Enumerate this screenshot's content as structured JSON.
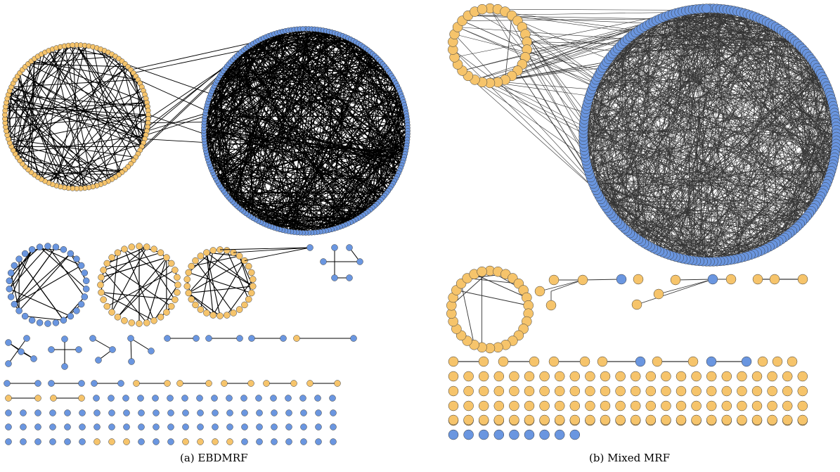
{
  "colors": {
    "orange_node": "#f6c46b",
    "blue_node": "#6a96e0",
    "edge": "#000000",
    "edge_dense": "#333333",
    "node_stroke": "#3a3a3a"
  },
  "panels": [
    {
      "id": "a",
      "caption": "(a) EBDMRF"
    },
    {
      "id": "b",
      "caption": "(b) Mixed MRF"
    }
  ]
}
